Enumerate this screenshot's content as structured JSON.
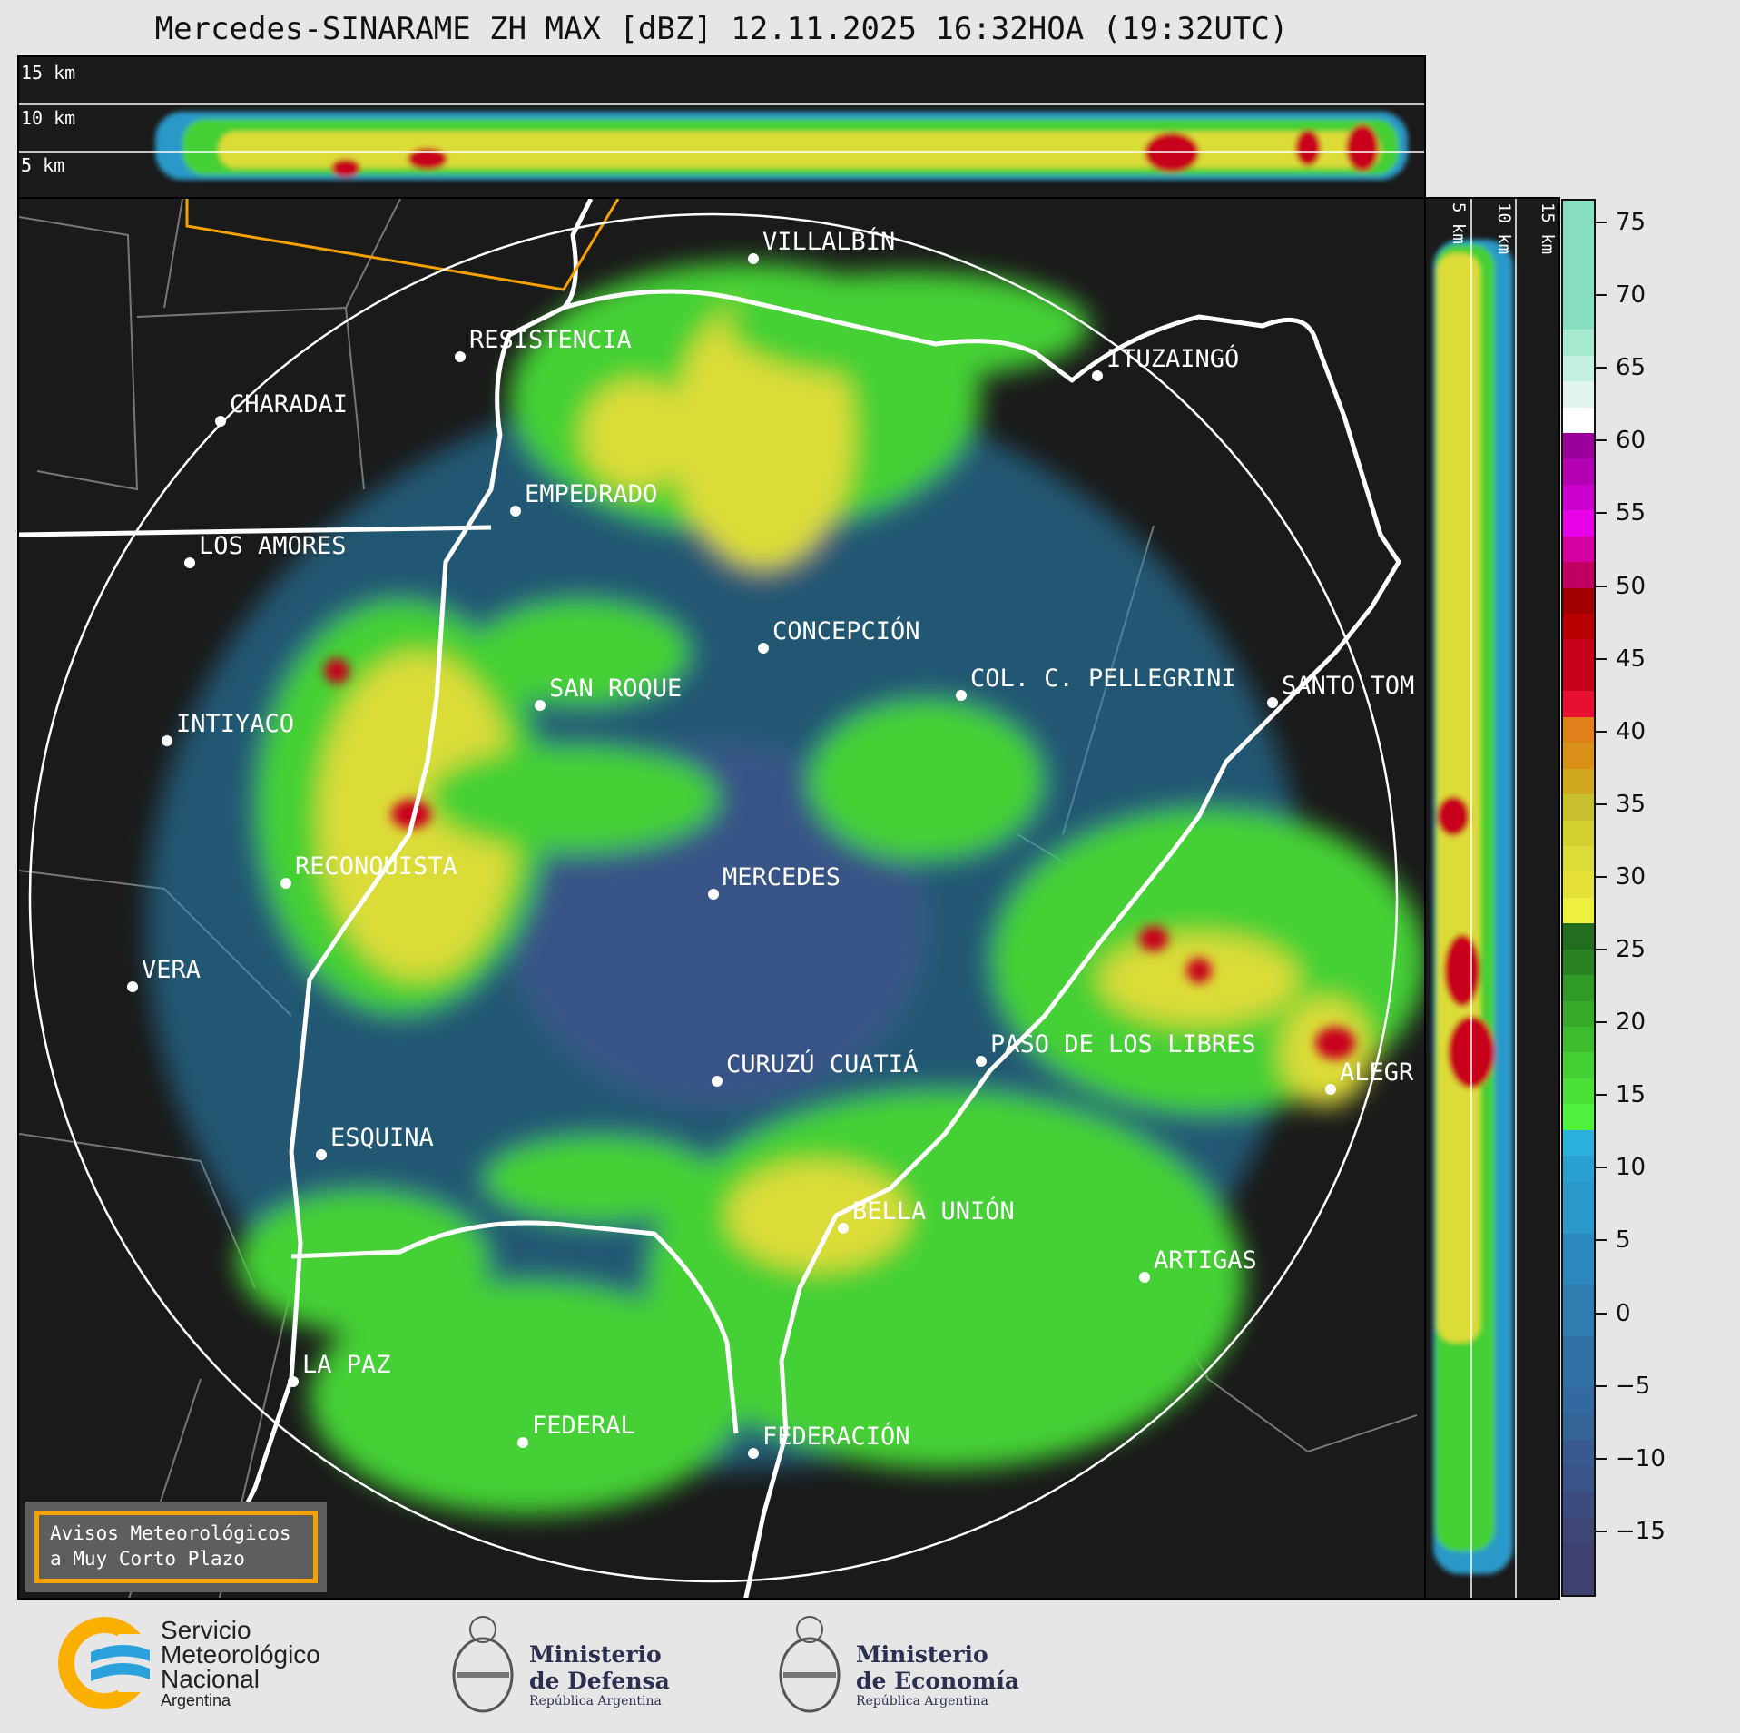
{
  "title": "Mercedes-SINARAME ZH MAX [dBZ] 12.11.2025 16:32HOA (19:32UTC)",
  "top_panel": {
    "labels": [
      "15 km",
      "10 km",
      "5 km"
    ]
  },
  "side_panel": {
    "labels": [
      "5 km",
      "10 km",
      "15 km"
    ]
  },
  "colorbar": {
    "ticks": [
      "75",
      "70",
      "65",
      "60",
      "55",
      "50",
      "45",
      "40",
      "35",
      "30",
      "25",
      "20",
      "15",
      "10",
      "5",
      "0",
      "−5",
      "−10",
      "−15"
    ],
    "colors": [
      "#88dfc0",
      "#88dfc0",
      "#88dfc0",
      "#88dfc0",
      "#88dfc0",
      "#a8ead0",
      "#c4f0df",
      "#e0f6ee",
      "#ffffff",
      "#9c009c",
      "#b400b4",
      "#cc00cc",
      "#e800e8",
      "#d400a0",
      "#c00060",
      "#a00000",
      "#b80000",
      "#c8001a",
      "#c8001a",
      "#e81030",
      "#e08018",
      "#d89018",
      "#d0a820",
      "#c8c030",
      "#d4d030",
      "#dcdc38",
      "#e4e038",
      "#eef040",
      "#226e1e",
      "#2a8222",
      "#309a26",
      "#38aa2a",
      "#3ebc30",
      "#44d034",
      "#4ae038",
      "#50f040",
      "#2cb0dc",
      "#2aa0d0",
      "#2a98c8",
      "#2a98c8",
      "#2c88bc",
      "#2c88bc",
      "#2e7cb0",
      "#2e7cb0",
      "#3070a4",
      "#3070a4",
      "#3468a0",
      "#346496",
      "#385a8e",
      "#3a5488",
      "#3c4c7e",
      "#3e4676",
      "#3e4070",
      "#3e4070"
    ]
  },
  "cities": [
    "VILLALBÍN",
    "RESISTENCIA",
    "CHARADAI",
    "EMPEDRADO",
    "LOS AMORES",
    "CONCEPCIÓN",
    "SAN ROQUE",
    "COL. C. PELLEGRINI",
    "SANTO TOM",
    "INTIYACO",
    "RECONQUISTA",
    "MERCEDES",
    "VERA",
    "PASO DE LOS LIBRES",
    "CURUZÚ CUATIÁ",
    "ALEGR",
    "ESQUINA",
    "BELLA UNIÓN",
    "ARTIGAS",
    "LA PAZ",
    "FEDERAL",
    "FEDERACIÓN",
    "ITUZAINGÓ"
  ],
  "avisos": {
    "line1": "Avisos Meteorológicos",
    "line2": "a Muy Corto Plazo"
  },
  "logos": {
    "smn": {
      "l1": "Servicio",
      "l2": "Meteorológico",
      "l3": "Nacional",
      "l4": "Argentina"
    },
    "defensa": {
      "l1": "Ministerio",
      "l2": "de Defensa",
      "l3": "República Argentina"
    },
    "economia": {
      "l1": "Ministerio",
      "l2": "de Economía",
      "l3": "República Argentina"
    }
  },
  "colors": {
    "background": "#1a1a1a",
    "page": "#e6e6e6",
    "orange": "#f5a100"
  }
}
